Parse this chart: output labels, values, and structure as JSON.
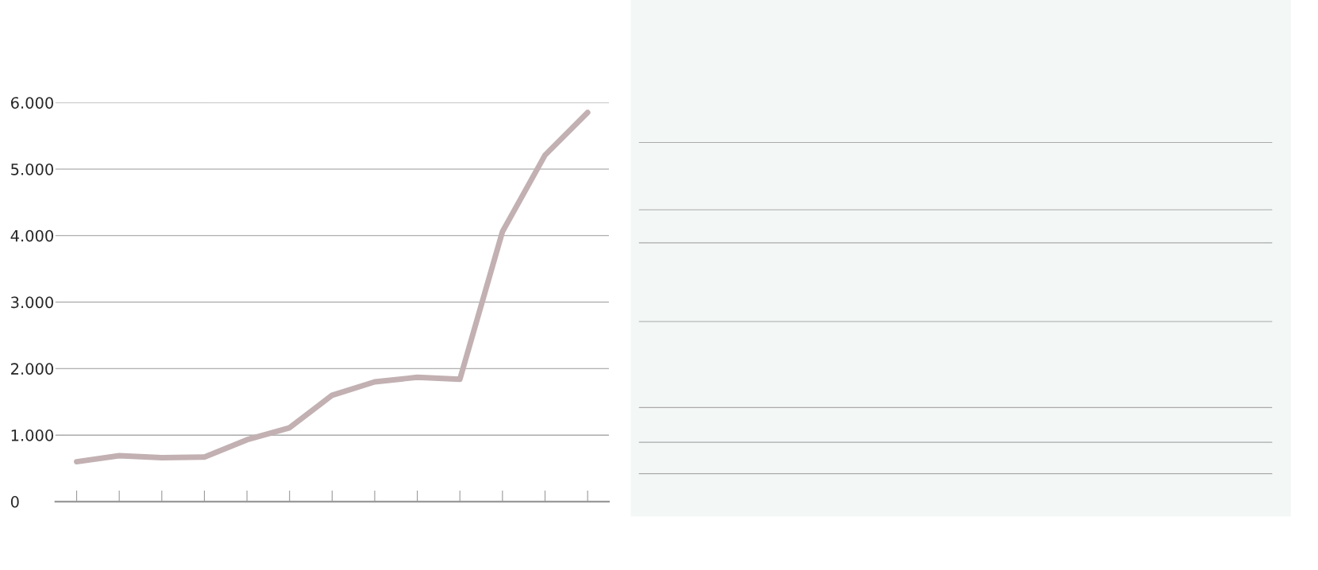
{
  "chart_data": {
    "type": "line",
    "categories": [
      null,
      null,
      null,
      null,
      null,
      null,
      null,
      null,
      null,
      null,
      null,
      null,
      null
    ],
    "series": [
      {
        "color": "#c2b0b2",
        "values": [
          600,
          690,
          660,
          670,
          930,
          1110,
          1600,
          1800,
          1870,
          1840,
          4060,
          5210,
          5850
        ]
      }
    ],
    "ylim": [
      0,
      6000
    ],
    "yticks": [
      0,
      {
        "value": 1000,
        "label": "1.000"
      },
      {
        "value": 2000,
        "label": "2.000"
      },
      {
        "value": 3000,
        "label": "3.000"
      },
      {
        "value": 4000,
        "label": "4.000"
      },
      {
        "value": 5000,
        "label": "5.000"
      },
      {
        "value": 6000,
        "label": "6.000"
      }
    ],
    "grid": "y",
    "legend": false,
    "line_style": "solid"
  }
}
